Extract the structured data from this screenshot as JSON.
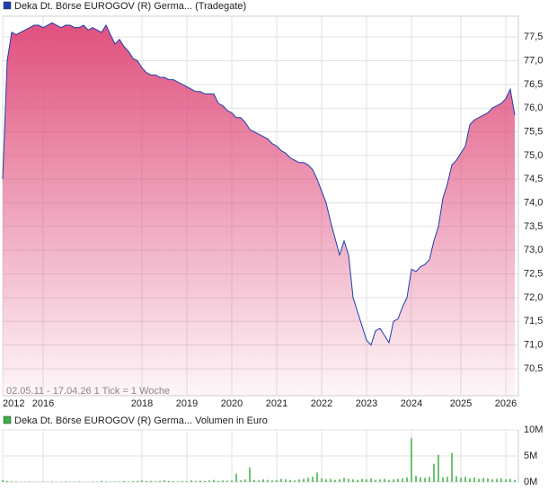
{
  "chart_data": [
    {
      "type": "line",
      "legend": "Deka Dt. Börse EUROGOV (R) Germa... (Tradegate)",
      "note": "02.05.11 - 17.04.26   1 Tick = 1 Woche",
      "color": "#1a3fae",
      "fill_color": "#e0507e",
      "grid": true,
      "categories": [
        "2012",
        null,
        null,
        null,
        null,
        null,
        null,
        null,
        null,
        "2016",
        null,
        null,
        null,
        null,
        null,
        null,
        null,
        null,
        null,
        null,
        null,
        null,
        null,
        null,
        null,
        null,
        null,
        null,
        null,
        null,
        null,
        "2018",
        null,
        null,
        null,
        null,
        null,
        null,
        null,
        null,
        null,
        "2019",
        null,
        null,
        null,
        null,
        null,
        null,
        null,
        null,
        null,
        "2020",
        null,
        null,
        null,
        null,
        null,
        null,
        null,
        null,
        null,
        "2021",
        null,
        null,
        null,
        null,
        null,
        null,
        null,
        null,
        null,
        "2022",
        null,
        null,
        null,
        null,
        null,
        null,
        null,
        null,
        null,
        "2023",
        null,
        null,
        null,
        null,
        null,
        null,
        null,
        null,
        null,
        "2024",
        null,
        null,
        null,
        null,
        null,
        null,
        null,
        null,
        null,
        null,
        "2025",
        null,
        null,
        null,
        null,
        null,
        null,
        null,
        null,
        null,
        "2026",
        null,
        null
      ],
      "values": [
        74.5,
        77.0,
        77.6,
        77.55,
        77.6,
        77.65,
        77.7,
        77.75,
        77.75,
        77.7,
        77.75,
        77.8,
        77.75,
        77.7,
        77.75,
        77.75,
        77.7,
        77.7,
        77.75,
        77.65,
        77.7,
        77.65,
        77.6,
        77.75,
        77.55,
        77.35,
        77.45,
        77.3,
        77.2,
        77.05,
        77.0,
        76.85,
        76.75,
        76.7,
        76.7,
        76.65,
        76.65,
        76.6,
        76.6,
        76.55,
        76.5,
        76.45,
        76.4,
        76.35,
        76.35,
        76.3,
        76.3,
        76.3,
        76.1,
        76.05,
        75.95,
        75.9,
        75.8,
        75.8,
        75.7,
        75.55,
        75.5,
        75.45,
        75.4,
        75.35,
        75.25,
        75.2,
        75.1,
        75.05,
        74.95,
        74.9,
        74.85,
        74.85,
        74.8,
        74.7,
        74.5,
        74.25,
        74.0,
        73.6,
        73.25,
        72.9,
        73.2,
        72.9,
        72.0,
        71.7,
        71.4,
        71.1,
        71.0,
        71.3,
        71.35,
        71.2,
        71.05,
        71.5,
        71.55,
        71.8,
        72.0,
        72.6,
        72.55,
        72.65,
        72.7,
        72.8,
        73.2,
        73.5,
        74.1,
        74.4,
        74.8,
        74.9,
        75.05,
        75.2,
        75.65,
        75.75,
        75.8,
        75.85,
        75.9,
        76.0,
        76.05,
        76.1,
        76.2,
        76.4,
        75.85
      ],
      "ylim": [
        69.93,
        77.94
      ],
      "yticks": [
        {
          "value": 70.5,
          "label": "70,5"
        },
        {
          "value": 71,
          "label": "71,0"
        },
        {
          "value": 71.5,
          "label": "71,5"
        },
        {
          "value": 72,
          "label": "72,0"
        },
        {
          "value": 72.5,
          "label": "72,5"
        },
        {
          "value": 73,
          "label": "73,0"
        },
        {
          "value": 73.5,
          "label": "73,5"
        },
        {
          "value": 74,
          "label": "74,0"
        },
        {
          "value": 74.5,
          "label": "74,5"
        },
        {
          "value": 75,
          "label": "75,0"
        },
        {
          "value": 75.5,
          "label": "75,5"
        },
        {
          "value": 76,
          "label": "76,0"
        },
        {
          "value": 76.5,
          "label": "76,5"
        },
        {
          "value": 77,
          "label": "77,0"
        },
        {
          "value": 77.5,
          "label": "77,5"
        }
      ]
    },
    {
      "type": "bar",
      "legend": "Deka Dt. Börse EUROGOV (R) Germa... Volumen in Euro",
      "color": "#3cb043",
      "grid": true,
      "values": [
        400000,
        200000,
        100000,
        100000,
        50000,
        50000,
        100000,
        50000,
        50000,
        100000,
        50000,
        100000,
        50000,
        50000,
        100000,
        50000,
        50000,
        100000,
        50000,
        50000,
        100000,
        50000,
        200000,
        100000,
        50000,
        100000,
        100000,
        200000,
        100000,
        150000,
        200000,
        300000,
        150000,
        200000,
        100000,
        200000,
        300000,
        200000,
        150000,
        100000,
        200000,
        150000,
        300000,
        200000,
        250000,
        200000,
        300000,
        400000,
        200000,
        300000,
        250000,
        300000,
        1600000,
        300000,
        500000,
        2800000,
        400000,
        300000,
        500000,
        400000,
        300000,
        400000,
        600000,
        500000,
        400000,
        300000,
        500000,
        600000,
        800000,
        1000000,
        1800000,
        700000,
        500000,
        600000,
        400000,
        500000,
        800000,
        600000,
        500000,
        400000,
        600000,
        500000,
        700000,
        400000,
        500000,
        600000,
        400000,
        500000,
        600000,
        700000,
        900000,
        8400000,
        1200000,
        900000,
        800000,
        1000000,
        3500000,
        5200000,
        900000,
        1000000,
        5600000,
        1100000,
        800000,
        1000000,
        700000,
        900000,
        600000,
        800000,
        700000,
        500000,
        600000,
        700000,
        500000,
        600000,
        400000
      ],
      "ylim": [
        0,
        10000000
      ],
      "yticks": [
        {
          "value": 0,
          "label": "0M"
        },
        {
          "value": 5000000,
          "label": "5M"
        },
        {
          "value": 10000000,
          "label": "10M"
        }
      ]
    }
  ]
}
